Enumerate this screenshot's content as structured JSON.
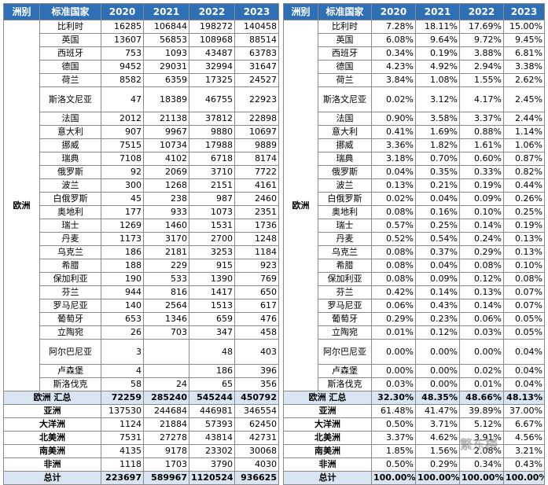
{
  "left": {
    "headers": [
      "洲别",
      "标准国家",
      "2020",
      "2021",
      "2022",
      "2023"
    ],
    "region": "欧洲",
    "rows": [
      [
        "比利时",
        "16285",
        "106844",
        "198272",
        "140458"
      ],
      [
        "英国",
        "13607",
        "56853",
        "108968",
        "88514"
      ],
      [
        "西班牙",
        "753",
        "1093",
        "43487",
        "63783"
      ],
      [
        "德国",
        "9452",
        "29031",
        "32994",
        "31647"
      ],
      [
        "荷兰",
        "8582",
        "6359",
        "17325",
        "24527"
      ],
      [
        "斯洛文尼亚",
        "47",
        "18389",
        "46755",
        "22923"
      ],
      [
        "法国",
        "2012",
        "21138",
        "37812",
        "22898"
      ],
      [
        "意大利",
        "907",
        "9967",
        "9880",
        "10697"
      ],
      [
        "挪威",
        "7515",
        "10734",
        "17988",
        "9889"
      ],
      [
        "瑞典",
        "7108",
        "4102",
        "6718",
        "8174"
      ],
      [
        "俄罗斯",
        "92",
        "2069",
        "3710",
        "7722"
      ],
      [
        "波兰",
        "300",
        "1268",
        "2151",
        "4161"
      ],
      [
        "白俄罗斯",
        "45",
        "238",
        "987",
        "2460"
      ],
      [
        "奥地利",
        "177",
        "933",
        "1073",
        "2351"
      ],
      [
        "瑞士",
        "1269",
        "1460",
        "1531",
        "1736"
      ],
      [
        "丹麦",
        "1173",
        "3170",
        "2700",
        "1248"
      ],
      [
        "乌克兰",
        "186",
        "2181",
        "3253",
        "1184"
      ],
      [
        "希腊",
        "188",
        "229",
        "915",
        "923"
      ],
      [
        "保加利亚",
        "190",
        "533",
        "1390",
        "769"
      ],
      [
        "芬兰",
        "944",
        "816",
        "1417",
        "650"
      ],
      [
        "罗马尼亚",
        "140",
        "2564",
        "1513",
        "617"
      ],
      [
        "葡萄牙",
        "653",
        "1346",
        "659",
        "476"
      ],
      [
        "立陶宛",
        "26",
        "703",
        "347",
        "458"
      ],
      [
        "阿尔巴尼亚",
        "3",
        "",
        "48",
        "403"
      ],
      [
        "卢森堡",
        "4",
        "",
        "186",
        "396"
      ],
      [
        "斯洛伐克",
        "58",
        "24",
        "65",
        "356"
      ]
    ],
    "summary": [
      "欧洲 汇总",
      "72259",
      "285240",
      "545244",
      "450792"
    ],
    "others": [
      [
        "亚洲",
        "137530",
        "244684",
        "446981",
        "346554"
      ],
      [
        "大洋洲",
        "1124",
        "21884",
        "57393",
        "62450"
      ],
      [
        "北美洲",
        "7531",
        "27278",
        "43814",
        "42731"
      ],
      [
        "南美洲",
        "4135",
        "9178",
        "23302",
        "30068"
      ],
      [
        "非洲",
        "1118",
        "1703",
        "3790",
        "4030"
      ]
    ],
    "total": [
      "总计",
      "223697",
      "589967",
      "1120524",
      "936625"
    ]
  },
  "right": {
    "headers": [
      "洲别",
      "标准国家",
      "2020",
      "2021",
      "2022",
      "2023"
    ],
    "region": "欧洲",
    "rows": [
      [
        "比利时",
        "7.28%",
        "18.11%",
        "17.69%",
        "15.00%"
      ],
      [
        "英国",
        "6.08%",
        "9.64%",
        "9.72%",
        "9.45%"
      ],
      [
        "西班牙",
        "0.34%",
        "0.19%",
        "3.88%",
        "6.81%"
      ],
      [
        "德国",
        "4.23%",
        "4.92%",
        "2.94%",
        "3.38%"
      ],
      [
        "荷兰",
        "3.84%",
        "1.08%",
        "1.55%",
        "2.62%"
      ],
      [
        "斯洛文尼亚",
        "0.02%",
        "3.12%",
        "4.17%",
        "2.45%"
      ],
      [
        "法国",
        "0.90%",
        "3.58%",
        "3.37%",
        "2.44%"
      ],
      [
        "意大利",
        "0.41%",
        "1.69%",
        "0.88%",
        "1.14%"
      ],
      [
        "挪威",
        "3.36%",
        "1.82%",
        "1.61%",
        "1.06%"
      ],
      [
        "瑞典",
        "3.18%",
        "0.70%",
        "0.60%",
        "0.87%"
      ],
      [
        "俄罗斯",
        "0.04%",
        "0.35%",
        "0.33%",
        "0.82%"
      ],
      [
        "波兰",
        "0.13%",
        "0.21%",
        "0.19%",
        "0.44%"
      ],
      [
        "白俄罗斯",
        "0.02%",
        "0.04%",
        "0.09%",
        "0.26%"
      ],
      [
        "奥地利",
        "0.08%",
        "0.16%",
        "0.10%",
        "0.25%"
      ],
      [
        "瑞士",
        "0.57%",
        "0.25%",
        "0.14%",
        "0.19%"
      ],
      [
        "丹麦",
        "0.52%",
        "0.54%",
        "0.24%",
        "0.13%"
      ],
      [
        "乌克兰",
        "0.08%",
        "0.37%",
        "0.29%",
        "0.13%"
      ],
      [
        "希腊",
        "0.08%",
        "0.04%",
        "0.08%",
        "0.10%"
      ],
      [
        "保加利亚",
        "0.08%",
        "0.09%",
        "0.12%",
        "0.08%"
      ],
      [
        "芬兰",
        "0.42%",
        "0.14%",
        "0.13%",
        "0.07%"
      ],
      [
        "罗马尼亚",
        "0.06%",
        "0.43%",
        "0.14%",
        "0.07%"
      ],
      [
        "葡萄牙",
        "0.29%",
        "0.23%",
        "0.06%",
        "0.05%"
      ],
      [
        "立陶宛",
        "0.01%",
        "0.12%",
        "0.03%",
        "0.05%"
      ],
      [
        "阿尔巴尼亚",
        "0.00%",
        "0.00%",
        "0.00%",
        "0.04%"
      ],
      [
        "卢森堡",
        "0.00%",
        "0.00%",
        "0.02%",
        "0.04%"
      ],
      [
        "斯洛伐克",
        "0.03%",
        "0.00%",
        "0.01%",
        "0.04%"
      ]
    ],
    "summary": [
      "欧洲 汇总",
      "32.30%",
      "48.35%",
      "48.66%",
      "48.13%"
    ],
    "others": [
      [
        "亚洲",
        "61.48%",
        "41.47%",
        "39.89%",
        "37.00%"
      ],
      [
        "大洋洲",
        "0.50%",
        "3.71%",
        "5.12%",
        "6.67%"
      ],
      [
        "北美洲",
        "3.37%",
        "4.62%",
        "3.91%",
        "4.56%"
      ],
      [
        "南美洲",
        "1.85%",
        "1.56%",
        "2.08%",
        "3.21%"
      ],
      [
        "非洲",
        "0.50%",
        "0.29%",
        "0.34%",
        "0.43%"
      ]
    ],
    "total": [
      "总计",
      "100.00%",
      "100.00%",
      "100.00%",
      "100.00%"
    ]
  },
  "watermark": "繁东楼"
}
